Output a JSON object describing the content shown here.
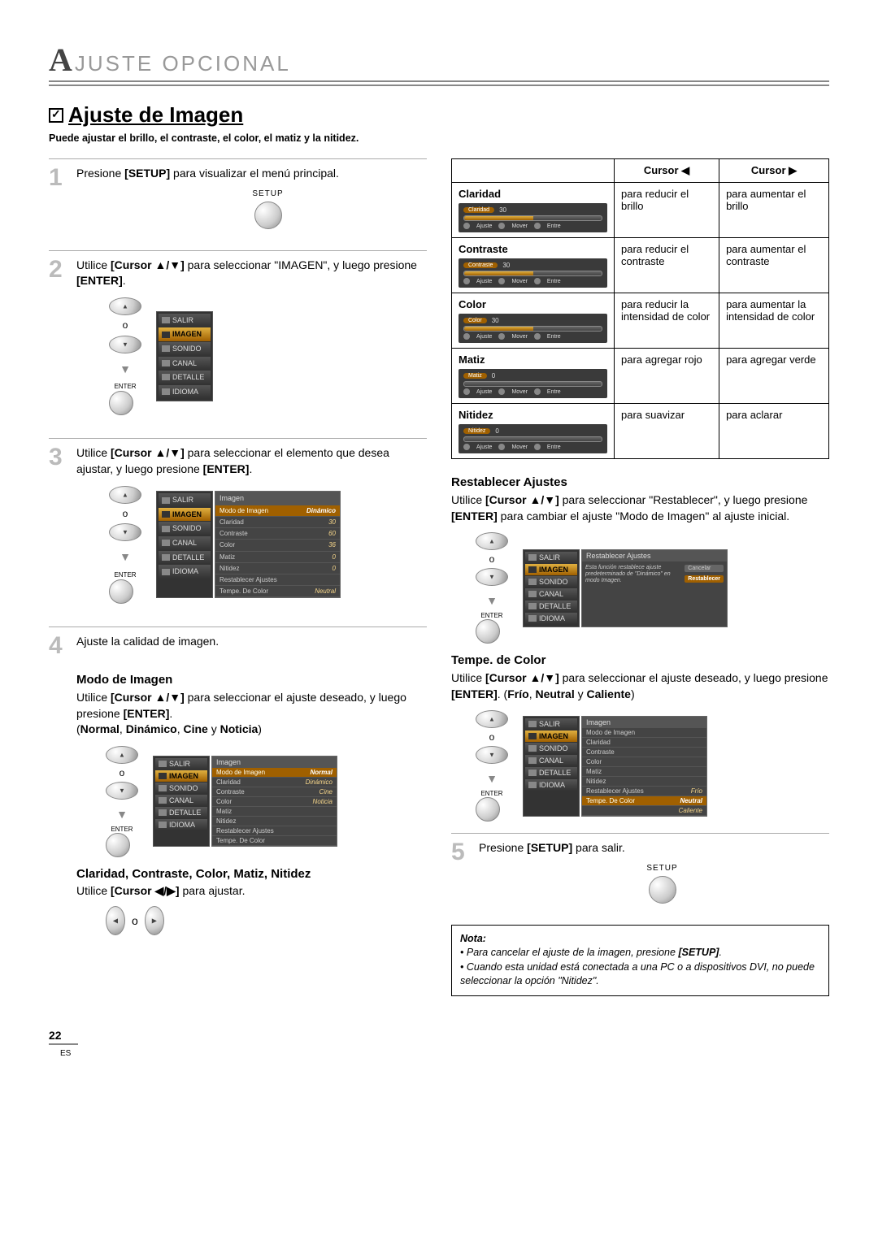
{
  "header": {
    "big": "A",
    "rest": "JUSTE   OPCIONAL"
  },
  "title": "Ajuste de Imagen",
  "subtitle": "Puede ajustar el brillo, el contraste, el color, el matiz y la nitidez.",
  "steps": {
    "s1": {
      "num": "1",
      "text_a": "Presione ",
      "text_b": "[SETUP]",
      "text_c": " para visualizar el menú principal.",
      "setup": "SETUP"
    },
    "s2": {
      "num": "2",
      "text_a": "Utilice ",
      "text_b": "[Cursor ▲/▼]",
      "text_c": " para seleccionar \"IMAGEN\", y luego presione ",
      "text_d": "[ENTER]",
      "text_e": "."
    },
    "s3": {
      "num": "3",
      "text_a": "Utilice ",
      "text_b": "[Cursor ▲/▼]",
      "text_c": " para seleccionar el elemento que desea ajustar, y luego presione ",
      "text_d": "[ENTER]",
      "text_e": "."
    },
    "s4": {
      "num": "4",
      "text": "Ajuste la calidad de imagen."
    },
    "s5": {
      "num": "5",
      "text_a": "Presione ",
      "text_b": "[SETUP]",
      "text_c": " para salir.",
      "setup": "SETUP"
    }
  },
  "nav": {
    "o": "o",
    "enter": "ENTER",
    "down_arrow": "▼"
  },
  "menu": {
    "items": [
      "SALIR",
      "IMAGEN",
      "SONIDO",
      "CANAL",
      "DETALLE",
      "IDIOMA"
    ]
  },
  "settings3": {
    "header": "Imagen",
    "rows": [
      {
        "k": "Modo de Imagen",
        "v": "Dinámico",
        "hl": true
      },
      {
        "k": "Claridad",
        "v": "30"
      },
      {
        "k": "Contraste",
        "v": "60"
      },
      {
        "k": "Color",
        "v": "36"
      },
      {
        "k": "Matiz",
        "v": "0"
      },
      {
        "k": "Nitidez",
        "v": "0"
      },
      {
        "k": "Restablecer Ajustes",
        "v": ""
      },
      {
        "k": "Tempe. De Color",
        "v": "Neutral"
      }
    ]
  },
  "modo": {
    "heading": "Modo de Imagen",
    "text_a": "Utilice ",
    "text_b": "[Cursor ▲/▼]",
    "text_c": " para seleccionar el ajuste deseado, y luego presione ",
    "text_d": "[ENTER]",
    "text_e": ".",
    "opts_intro": "(",
    "o1": "Normal",
    "c": ", ",
    "o2": "Dinámico",
    "o3": "Cine",
    "y": " y ",
    "o4": "Noticia",
    "close": ")",
    "panel": {
      "header": "Imagen",
      "rows": [
        {
          "k": "Modo de Imagen",
          "v": "Normal",
          "hl": true
        },
        {
          "k": "Claridad",
          "v": "Dinámico"
        },
        {
          "k": "Contraste",
          "v": "Cine"
        },
        {
          "k": "Color",
          "v": "Noticia"
        },
        {
          "k": "Matiz",
          "v": ""
        },
        {
          "k": "Nitidez",
          "v": ""
        },
        {
          "k": "Restablecer Ajustes",
          "v": ""
        },
        {
          "k": "Tempe. De Color",
          "v": ""
        }
      ]
    }
  },
  "ccmn": {
    "heading": "Claridad, Contraste, Color, Matiz, Nitidez",
    "text_a": "Utilice ",
    "text_b": "[Cursor ◀/▶]",
    "text_c": " para ajustar."
  },
  "adj_table": {
    "h_left": "Cursor ◀",
    "h_right": "Cursor ▶",
    "rows": [
      {
        "label": "Claridad",
        "slider_label": "Claridad",
        "slider_val": "30",
        "left": "para reducir el brillo",
        "right": "para aumentar el brillo",
        "fill": "half"
      },
      {
        "label": "Contraste",
        "slider_label": "Contraste",
        "slider_val": "30",
        "left": "para reducir el contraste",
        "right": "para aumentar el contraste",
        "fill": "half"
      },
      {
        "label": "Color",
        "slider_label": "Color",
        "slider_val": "30",
        "left": "para reducir la intensidad de color",
        "right": "para aumentar la intensidad de color",
        "fill": "half"
      },
      {
        "label": "Matiz",
        "slider_label": "Matiz",
        "slider_val": "0",
        "left": "para agregar rojo",
        "right": "para agregar verde",
        "fill": "zero"
      },
      {
        "label": "Nitidez",
        "slider_label": "Nitidez",
        "slider_val": "0",
        "left": "para suavizar",
        "right": "para aclarar",
        "fill": "zero"
      }
    ],
    "legend": {
      "a": "Ajuste",
      "b": "Mover",
      "c": "Entre"
    }
  },
  "reset": {
    "heading": "Restablecer Ajustes",
    "text_a": "Utilice ",
    "text_b": "[Cursor ▲/▼]",
    "text_c": " para seleccionar \"Restablecer\", y luego presione ",
    "text_d": "[ENTER]",
    "text_e": " para cambiar el ajuste \"Modo de Imagen\" al ajuste inicial.",
    "panel_header": "Restablecer Ajustes",
    "panel_text": "Esta función restablece ajuste predeterminado de \"Dinámico\" en modo Imagen.",
    "btn1": "Cancelar",
    "btn2": "Restablecer"
  },
  "tempe": {
    "heading": "Tempe. de Color",
    "text_a": "Utilice ",
    "text_b": "[Cursor ▲/▼]",
    "text_c": " para seleccionar el ajuste deseado, y luego presione ",
    "text_d": "[ENTER]",
    "text_e": ". (",
    "o1": "Frío",
    "c": ", ",
    "o2": "Neutral",
    "y": " y ",
    "o3": "Caliente",
    "close": ")",
    "panel": {
      "header": "Imagen",
      "rows": [
        {
          "k": "Modo de Imagen",
          "v": ""
        },
        {
          "k": "Claridad",
          "v": ""
        },
        {
          "k": "Contraste",
          "v": ""
        },
        {
          "k": "Color",
          "v": ""
        },
        {
          "k": "Matiz",
          "v": ""
        },
        {
          "k": "Nitidez",
          "v": ""
        },
        {
          "k": "Restablecer Ajustes",
          "v": "Frío"
        },
        {
          "k": "Tempe. De Color",
          "v": "Neutral",
          "hl": true
        },
        {
          "k": "",
          "v": "Caliente"
        }
      ]
    }
  },
  "note": {
    "title": "Nota:",
    "l1_a": "Para cancelar el ajuste de la imagen, presione ",
    "l1_b": "[SETUP]",
    "l1_c": ".",
    "l2": "Cuando esta unidad está conectada a una PC o a dispositivos DVI, no puede seleccionar la opción \"Nitidez\"."
  },
  "footer": {
    "page": "22",
    "lang": "ES"
  },
  "colors": {
    "accent": "#a06000",
    "muted": "#999"
  }
}
